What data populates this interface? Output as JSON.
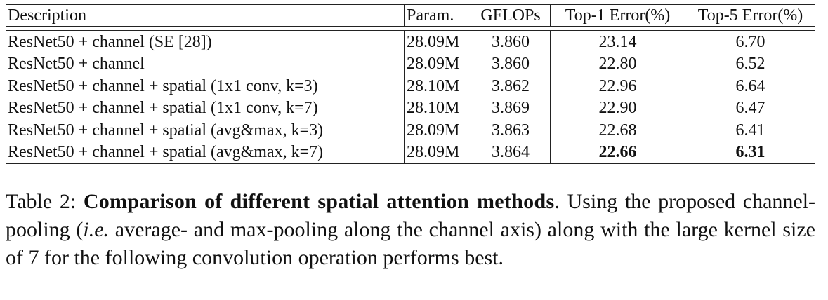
{
  "table": {
    "headers": [
      "Description",
      "Param.",
      "GFLOPs",
      "Top-1 Error(%)",
      "Top-5 Error(%)"
    ],
    "rows": [
      {
        "description": "ResNet50 + channel (SE [28])",
        "param": "28.09M",
        "gflops": "3.860",
        "top1": "23.14",
        "top5": "6.70"
      },
      {
        "description": "ResNet50 + channel",
        "param": "28.09M",
        "gflops": "3.860",
        "top1": "22.80",
        "top5": "6.52"
      },
      {
        "description": "ResNet50 + channel + spatial (1x1 conv, k=3)",
        "param": "28.10M",
        "gflops": "3.862",
        "top1": "22.96",
        "top5": "6.64"
      },
      {
        "description": "ResNet50 + channel + spatial (1x1 conv, k=7)",
        "param": "28.10M",
        "gflops": "3.869",
        "top1": "22.90",
        "top5": "6.47"
      },
      {
        "description": "ResNet50 + channel + spatial (avg&max, k=3)",
        "param": "28.09M",
        "gflops": "3.863",
        "top1": "22.68",
        "top5": "6.41"
      },
      {
        "description": "ResNet50 + channel + spatial (avg&max, k=7)",
        "param": "28.09M",
        "gflops": "3.864",
        "top1": "22.66",
        "top5": "6.31"
      }
    ]
  },
  "caption": {
    "label": "Table 2:",
    "title": "Comparison of different spatial attention methods",
    "text_1": ". Using the proposed channel-pooling (",
    "italic": "i.e.",
    "text_2": " average- and max-pooling along the channel axis) along with the large kernel size of 7 for the following convolution operation performs best."
  }
}
